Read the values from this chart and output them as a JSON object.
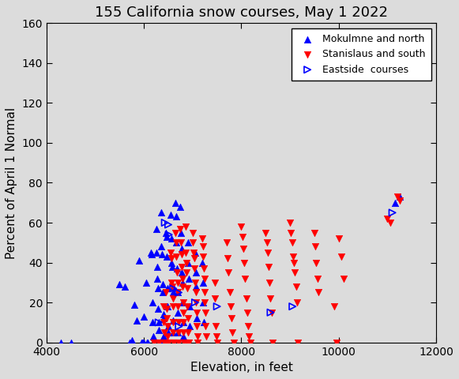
{
  "title": "155 California snow courses, May 1 2022",
  "xlabel": "Elevation, in feet",
  "ylabel": "Percent of April 1 Normal",
  "xlim": [
    4000,
    12000
  ],
  "ylim": [
    0,
    160
  ],
  "xticks": [
    4000,
    6000,
    8000,
    10000,
    12000
  ],
  "yticks": [
    0,
    20,
    40,
    60,
    80,
    100,
    120,
    140,
    160
  ],
  "bg_color": "#dcdcdc",
  "blue_up": [
    [
      4300,
      0
    ],
    [
      4500,
      0
    ],
    [
      5500,
      29
    ],
    [
      5600,
      28
    ],
    [
      5700,
      0
    ],
    [
      5750,
      1
    ],
    [
      5800,
      19
    ],
    [
      5850,
      11
    ],
    [
      5900,
      41
    ],
    [
      5950,
      0
    ],
    [
      5970,
      0
    ],
    [
      5980,
      0
    ],
    [
      5990,
      0
    ],
    [
      5995,
      13
    ],
    [
      6050,
      30
    ],
    [
      6070,
      0
    ],
    [
      6080,
      0
    ],
    [
      6150,
      45
    ],
    [
      6160,
      44
    ],
    [
      6170,
      20
    ],
    [
      6180,
      10
    ],
    [
      6190,
      3
    ],
    [
      6250,
      57
    ],
    [
      6260,
      45
    ],
    [
      6270,
      38
    ],
    [
      6280,
      32
    ],
    [
      6290,
      27
    ],
    [
      6295,
      17
    ],
    [
      6300,
      10
    ],
    [
      6305,
      6
    ],
    [
      6310,
      0
    ],
    [
      6320,
      0
    ],
    [
      6350,
      65
    ],
    [
      6360,
      48
    ],
    [
      6370,
      44
    ],
    [
      6380,
      29
    ],
    [
      6390,
      25
    ],
    [
      6395,
      14
    ],
    [
      6400,
      12
    ],
    [
      6405,
      3
    ],
    [
      6410,
      0
    ],
    [
      6450,
      55
    ],
    [
      6460,
      53
    ],
    [
      6470,
      43
    ],
    [
      6480,
      27
    ],
    [
      6490,
      18
    ],
    [
      6495,
      8
    ],
    [
      6500,
      5
    ],
    [
      6505,
      0
    ],
    [
      6550,
      64
    ],
    [
      6560,
      52
    ],
    [
      6570,
      40
    ],
    [
      6580,
      38
    ],
    [
      6590,
      28
    ],
    [
      6595,
      25
    ],
    [
      6600,
      11
    ],
    [
      6605,
      5
    ],
    [
      6650,
      70
    ],
    [
      6660,
      63
    ],
    [
      6670,
      50
    ],
    [
      6680,
      37
    ],
    [
      6690,
      25
    ],
    [
      6695,
      15
    ],
    [
      6700,
      5
    ],
    [
      6705,
      0
    ],
    [
      6750,
      68
    ],
    [
      6760,
      55
    ],
    [
      6770,
      47
    ],
    [
      6780,
      35
    ],
    [
      6790,
      30
    ],
    [
      6795,
      20
    ],
    [
      6800,
      10
    ],
    [
      6805,
      3
    ],
    [
      6900,
      50
    ],
    [
      6910,
      40
    ],
    [
      6920,
      32
    ],
    [
      6930,
      18
    ],
    [
      6940,
      8
    ],
    [
      7050,
      45
    ],
    [
      7060,
      35
    ],
    [
      7070,
      28
    ],
    [
      7080,
      12
    ],
    [
      7200,
      40
    ],
    [
      7210,
      30
    ],
    [
      7220,
      20
    ],
    [
      7230,
      10
    ],
    [
      11150,
      70
    ],
    [
      11250,
      73
    ]
  ],
  "red_down": [
    [
      6200,
      0
    ],
    [
      6210,
      0
    ],
    [
      6300,
      0
    ],
    [
      6310,
      0
    ],
    [
      6400,
      18
    ],
    [
      6410,
      10
    ],
    [
      6415,
      5
    ],
    [
      6420,
      0
    ],
    [
      6425,
      0
    ],
    [
      6450,
      25
    ],
    [
      6460,
      17
    ],
    [
      6470,
      12
    ],
    [
      6480,
      8
    ],
    [
      6490,
      3
    ],
    [
      6495,
      0
    ],
    [
      6500,
      0
    ],
    [
      6550,
      45
    ],
    [
      6560,
      42
    ],
    [
      6570,
      30
    ],
    [
      6580,
      28
    ],
    [
      6590,
      22
    ],
    [
      6595,
      18
    ],
    [
      6600,
      10
    ],
    [
      6605,
      5
    ],
    [
      6610,
      0
    ],
    [
      6615,
      0
    ],
    [
      6650,
      55
    ],
    [
      6660,
      50
    ],
    [
      6670,
      43
    ],
    [
      6680,
      35
    ],
    [
      6690,
      30
    ],
    [
      6695,
      25
    ],
    [
      6700,
      18
    ],
    [
      6705,
      10
    ],
    [
      6710,
      5
    ],
    [
      6715,
      0
    ],
    [
      6750,
      57
    ],
    [
      6760,
      50
    ],
    [
      6770,
      44
    ],
    [
      6780,
      38
    ],
    [
      6790,
      32
    ],
    [
      6795,
      28
    ],
    [
      6800,
      20
    ],
    [
      6805,
      15
    ],
    [
      6810,
      10
    ],
    [
      6815,
      5
    ],
    [
      6820,
      0
    ],
    [
      6825,
      0
    ],
    [
      6850,
      58
    ],
    [
      6860,
      45
    ],
    [
      6870,
      40
    ],
    [
      6880,
      35
    ],
    [
      6890,
      27
    ],
    [
      6895,
      18
    ],
    [
      6900,
      12
    ],
    [
      6905,
      5
    ],
    [
      6910,
      0
    ],
    [
      6915,
      0
    ],
    [
      7000,
      55
    ],
    [
      7010,
      50
    ],
    [
      7020,
      45
    ],
    [
      7030,
      42
    ],
    [
      7040,
      37
    ],
    [
      7050,
      30
    ],
    [
      7060,
      25
    ],
    [
      7070,
      20
    ],
    [
      7080,
      15
    ],
    [
      7090,
      8
    ],
    [
      7095,
      3
    ],
    [
      7100,
      0
    ],
    [
      7200,
      52
    ],
    [
      7210,
      48
    ],
    [
      7220,
      43
    ],
    [
      7230,
      37
    ],
    [
      7240,
      32
    ],
    [
      7245,
      25
    ],
    [
      7250,
      20
    ],
    [
      7260,
      15
    ],
    [
      7270,
      8
    ],
    [
      7280,
      3
    ],
    [
      7450,
      30
    ],
    [
      7460,
      22
    ],
    [
      7480,
      8
    ],
    [
      7490,
      3
    ],
    [
      7500,
      0
    ],
    [
      7700,
      50
    ],
    [
      7720,
      42
    ],
    [
      7740,
      35
    ],
    [
      7760,
      25
    ],
    [
      7780,
      18
    ],
    [
      7800,
      12
    ],
    [
      7820,
      5
    ],
    [
      7840,
      0
    ],
    [
      8000,
      58
    ],
    [
      8020,
      53
    ],
    [
      8040,
      47
    ],
    [
      8060,
      40
    ],
    [
      8080,
      32
    ],
    [
      8100,
      22
    ],
    [
      8120,
      15
    ],
    [
      8140,
      8
    ],
    [
      8160,
      3
    ],
    [
      8180,
      0
    ],
    [
      8500,
      55
    ],
    [
      8520,
      50
    ],
    [
      8540,
      45
    ],
    [
      8560,
      38
    ],
    [
      8580,
      30
    ],
    [
      8600,
      22
    ],
    [
      8620,
      15
    ],
    [
      8640,
      0
    ],
    [
      9000,
      60
    ],
    [
      9020,
      55
    ],
    [
      9040,
      50
    ],
    [
      9060,
      43
    ],
    [
      9080,
      40
    ],
    [
      9100,
      35
    ],
    [
      9120,
      28
    ],
    [
      9140,
      20
    ],
    [
      9160,
      0
    ],
    [
      9500,
      55
    ],
    [
      9520,
      48
    ],
    [
      9540,
      40
    ],
    [
      9560,
      32
    ],
    [
      9580,
      25
    ],
    [
      9900,
      18
    ],
    [
      9950,
      0
    ],
    [
      10000,
      52
    ],
    [
      10050,
      43
    ],
    [
      10100,
      32
    ],
    [
      11000,
      62
    ],
    [
      11050,
      60
    ],
    [
      11200,
      73
    ],
    [
      11250,
      71
    ]
  ],
  "blue_right": [
    [
      6300,
      10
    ],
    [
      6430,
      60
    ],
    [
      6500,
      59
    ],
    [
      6510,
      54
    ],
    [
      6600,
      27
    ],
    [
      6710,
      25
    ],
    [
      6715,
      8
    ],
    [
      7050,
      20
    ],
    [
      7500,
      18
    ],
    [
      8600,
      15
    ],
    [
      9050,
      18
    ],
    [
      11100,
      65
    ]
  ],
  "legend_labels": [
    "Mokulmne and north",
    "Stanislaus and south",
    "Eastside  courses"
  ],
  "marker_size": 6,
  "title_fontsize": 13
}
